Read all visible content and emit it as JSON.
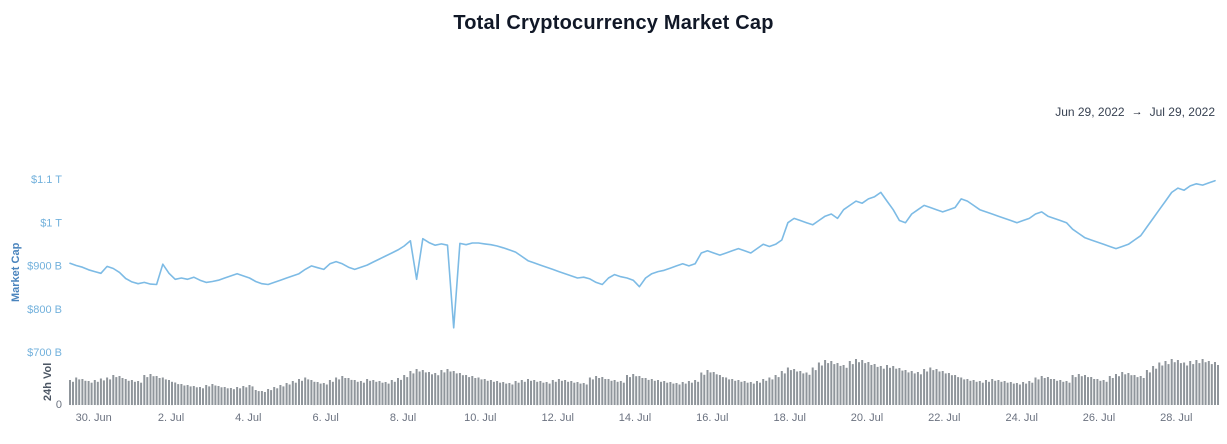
{
  "page": {
    "title": "Total Cryptocurrency Market Cap",
    "date_range": {
      "start": "Jun 29, 2022",
      "arrow": "→",
      "end": "Jul 29, 2022"
    }
  },
  "chart_data": {
    "type": "line+bar",
    "title": "Total Cryptocurrency Market Cap",
    "x_range": [
      "Jun 29, 2022",
      "Jul 29, 2022"
    ],
    "unit": "USD billions",
    "grid": false,
    "legend": "none",
    "y_ticks": [
      {
        "label": "$1.1 T",
        "value": 1100
      },
      {
        "label": "$1 T",
        "value": 1000
      },
      {
        "label": "$900 B",
        "value": 900
      },
      {
        "label": "$800 B",
        "value": 800
      },
      {
        "label": "$700 B",
        "value": 700
      }
    ],
    "x_ticks": [
      {
        "label": "30. Jun",
        "day": 1
      },
      {
        "label": "2. Jul",
        "day": 3
      },
      {
        "label": "4. Jul",
        "day": 5
      },
      {
        "label": "6. Jul",
        "day": 7
      },
      {
        "label": "8. Jul",
        "day": 9
      },
      {
        "label": "10. Jul",
        "day": 11
      },
      {
        "label": "12. Jul",
        "day": 13
      },
      {
        "label": "14. Jul",
        "day": 15
      },
      {
        "label": "16. Jul",
        "day": 17
      },
      {
        "label": "18. Jul",
        "day": 19
      },
      {
        "label": "20. Jul",
        "day": 21
      },
      {
        "label": "22. Jul",
        "day": 23
      },
      {
        "label": "24. Jul",
        "day": 25
      },
      {
        "label": "26. Jul",
        "day": 27
      },
      {
        "label": "28. Jul",
        "day": 29
      }
    ],
    "market_cap": {
      "name": "Market Cap",
      "ylim": [
        700,
        1150
      ],
      "values": [
        905,
        900,
        896,
        890,
        886,
        882,
        898,
        893,
        884,
        870,
        862,
        858,
        861,
        857,
        856,
        903,
        882,
        868,
        871,
        868,
        873,
        866,
        861,
        863,
        866,
        871,
        876,
        881,
        876,
        871,
        863,
        858,
        856,
        861,
        866,
        871,
        876,
        881,
        891,
        899,
        895,
        891,
        904,
        909,
        904,
        896,
        891,
        896,
        901,
        908,
        915,
        922,
        929,
        936,
        945,
        957,
        868,
        962,
        953,
        947,
        950,
        947,
        756,
        951,
        948,
        952,
        952,
        950,
        948,
        945,
        941,
        936,
        931,
        921,
        911,
        906,
        901,
        896,
        891,
        886,
        881,
        876,
        871,
        873,
        869,
        861,
        856,
        871,
        879,
        874,
        871,
        866,
        851,
        871,
        881,
        886,
        889,
        894,
        899,
        904,
        899,
        904,
        929,
        934,
        929,
        924,
        929,
        934,
        939,
        934,
        929,
        939,
        949,
        944,
        949,
        959,
        999,
        1009,
        1004,
        999,
        994,
        1004,
        1014,
        1019,
        1009,
        1029,
        1039,
        1049,
        1044,
        1054,
        1059,
        1069,
        1049,
        1029,
        1004,
        999,
        1019,
        1029,
        1039,
        1034,
        1029,
        1024,
        1029,
        1034,
        1054,
        1049,
        1039,
        1029,
        1024,
        1019,
        1014,
        1009,
        1004,
        999,
        1004,
        1009,
        1019,
        1024,
        1014,
        1009,
        1004,
        999,
        984,
        974,
        964,
        959,
        954,
        949,
        944,
        939,
        944,
        949,
        959,
        969,
        989,
        1009,
        1029,
        1049,
        1069,
        1079,
        1074,
        1084,
        1089,
        1086,
        1091,
        1096
      ]
    },
    "volume": {
      "name": "24h Vol",
      "zero_label": "0",
      "values": [
        50,
        55,
        52,
        48,
        50,
        53,
        55,
        60,
        58,
        52,
        50,
        48,
        60,
        62,
        58,
        55,
        50,
        45,
        42,
        40,
        38,
        36,
        40,
        42,
        38,
        36,
        34,
        36,
        38,
        40,
        30,
        28,
        32,
        36,
        40,
        44,
        48,
        52,
        55,
        50,
        46,
        44,
        50,
        55,
        58,
        54,
        50,
        48,
        52,
        50,
        48,
        46,
        50,
        54,
        60,
        68,
        72,
        70,
        66,
        64,
        70,
        72,
        68,
        64,
        60,
        58,
        55,
        52,
        50,
        48,
        46,
        44,
        48,
        50,
        52,
        50,
        48,
        46,
        50,
        52,
        50,
        48,
        46,
        44,
        55,
        58,
        56,
        52,
        50,
        48,
        60,
        62,
        58,
        54,
        52,
        50,
        48,
        46,
        44,
        46,
        48,
        50,
        65,
        70,
        66,
        60,
        55,
        52,
        50,
        48,
        46,
        48,
        52,
        55,
        60,
        68,
        75,
        72,
        68,
        65,
        75,
        85,
        90,
        88,
        84,
        80,
        88,
        92,
        90,
        86,
        82,
        78,
        80,
        78,
        74,
        70,
        68,
        66,
        72,
        75,
        72,
        68,
        64,
        60,
        55,
        52,
        50,
        48,
        50,
        52,
        50,
        48,
        46,
        44,
        46,
        48,
        55,
        58,
        56,
        52,
        50,
        48,
        60,
        62,
        60,
        56,
        52,
        50,
        58,
        62,
        66,
        64,
        60,
        58,
        70,
        78,
        85,
        88,
        92,
        90,
        85,
        88,
        90,
        92,
        88,
        86
      ]
    },
    "colors": {
      "line": "#7dbbe5",
      "bar": "#8f959b",
      "y_tick": "#72b1dc",
      "axis": "#6b7280",
      "mc_label": "#4a84bd",
      "vol_label": "#4b5563"
    }
  }
}
